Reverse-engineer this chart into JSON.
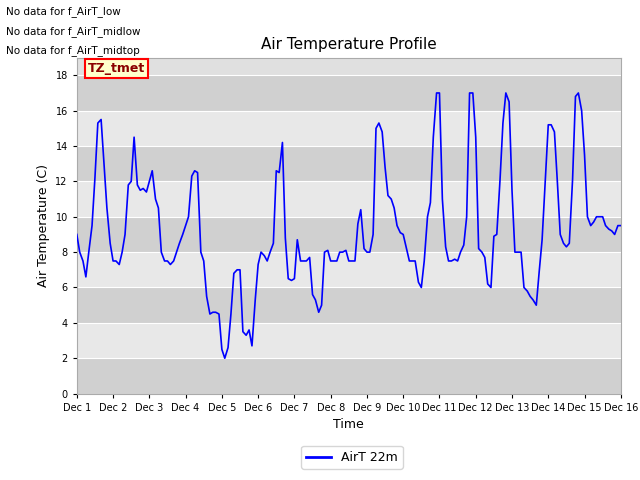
{
  "title": "Air Temperature Profile",
  "xlabel": "Time",
  "ylabel": "Air Temperature (C)",
  "ylim": [
    0,
    19
  ],
  "yticks": [
    0,
    2,
    4,
    6,
    8,
    10,
    12,
    14,
    16,
    18
  ],
  "line_color": "#0000FF",
  "line_width": 1.2,
  "bg_color": "#ffffff",
  "plot_bg_color": "#e0e0e0",
  "band_color_dark": "#d0d0d0",
  "band_color_light": "#e8e8e8",
  "annotation_texts": [
    "No data for f_AirT_low",
    "No data for f_AirT_midlow",
    "No data for f_AirT_midtop"
  ],
  "legend_label": "AirT 22m",
  "legend_line_color": "#0000FF",
  "tz_tmet_text": "TZ_tmet",
  "xtick_labels": [
    "Dec 1",
    "Dec 2",
    "Dec 3",
    "Dec 4",
    "Dec 5",
    "Dec 6",
    "Dec 7",
    "Dec 8",
    "Dec 9",
    "Dec 10",
    "Dec 11",
    "Dec 12",
    "Dec 13",
    "Dec 14",
    "Dec 15",
    "Dec 16"
  ],
  "time_values": [
    0,
    0.08,
    0.17,
    0.25,
    0.33,
    0.42,
    0.5,
    0.58,
    0.67,
    0.75,
    0.83,
    0.92,
    1.0,
    1.08,
    1.17,
    1.25,
    1.33,
    1.42,
    1.5,
    1.58,
    1.67,
    1.75,
    1.83,
    1.92,
    2.0,
    2.08,
    2.17,
    2.25,
    2.33,
    2.42,
    2.5,
    2.58,
    2.67,
    2.75,
    2.83,
    2.92,
    3.0,
    3.08,
    3.17,
    3.25,
    3.33,
    3.42,
    3.5,
    3.58,
    3.67,
    3.75,
    3.83,
    3.92,
    4.0,
    4.08,
    4.17,
    4.25,
    4.33,
    4.42,
    4.5,
    4.58,
    4.67,
    4.75,
    4.83,
    4.92,
    5.0,
    5.08,
    5.17,
    5.25,
    5.33,
    5.42,
    5.5,
    5.58,
    5.67,
    5.75,
    5.83,
    5.92,
    6.0,
    6.08,
    6.17,
    6.25,
    6.33,
    6.42,
    6.5,
    6.58,
    6.67,
    6.75,
    6.83,
    6.92,
    7.0,
    7.08,
    7.17,
    7.25,
    7.33,
    7.42,
    7.5,
    7.58,
    7.67,
    7.75,
    7.83,
    7.92,
    8.0,
    8.08,
    8.17,
    8.25,
    8.33,
    8.42,
    8.5,
    8.58,
    8.67,
    8.75,
    8.83,
    8.92,
    9.0,
    9.08,
    9.17,
    9.25,
    9.33,
    9.42,
    9.5,
    9.58,
    9.67,
    9.75,
    9.83,
    9.92,
    10.0,
    10.08,
    10.17,
    10.25,
    10.33,
    10.42,
    10.5,
    10.58,
    10.67,
    10.75,
    10.83,
    10.92,
    11.0,
    11.08,
    11.17,
    11.25,
    11.33,
    11.42,
    11.5,
    11.58,
    11.67,
    11.75,
    11.83,
    11.92,
    12.0,
    12.08,
    12.17,
    12.25,
    12.33,
    12.42,
    12.5,
    12.58,
    12.67,
    12.75,
    12.83,
    12.92,
    13.0,
    13.08,
    13.17,
    13.25,
    13.33,
    13.42,
    13.5,
    13.58,
    13.67,
    13.75,
    13.83,
    13.92,
    14.0,
    14.08,
    14.17,
    14.25,
    14.33,
    14.42,
    14.5,
    14.58,
    14.67,
    14.75,
    14.83,
    14.92,
    15.0
  ],
  "temp_values": [
    9.0,
    8.0,
    7.5,
    6.6,
    8.0,
    9.5,
    12.2,
    15.3,
    15.5,
    13.0,
    10.5,
    8.5,
    7.5,
    7.5,
    7.3,
    8.0,
    9.0,
    11.8,
    12.0,
    14.5,
    11.8,
    11.5,
    11.6,
    11.4,
    12.0,
    12.6,
    11.0,
    10.5,
    8.0,
    7.5,
    7.5,
    7.3,
    7.5,
    8.0,
    8.5,
    9.0,
    9.5,
    10.0,
    12.3,
    12.6,
    12.5,
    8.0,
    7.5,
    5.5,
    4.5,
    4.6,
    4.6,
    4.5,
    2.5,
    2.0,
    2.6,
    4.5,
    6.8,
    7.0,
    7.0,
    3.5,
    3.3,
    3.6,
    2.7,
    5.3,
    7.3,
    8.0,
    7.8,
    7.5,
    8.0,
    8.5,
    12.6,
    12.5,
    14.2,
    8.8,
    6.5,
    6.4,
    6.5,
    8.7,
    7.5,
    7.5,
    7.5,
    7.7,
    5.6,
    5.3,
    4.6,
    5.0,
    8.0,
    8.1,
    7.5,
    7.5,
    7.5,
    8.0,
    8.0,
    8.1,
    7.5,
    7.5,
    7.5,
    9.6,
    10.4,
    8.2,
    8.0,
    8.0,
    9.0,
    15.0,
    15.3,
    14.8,
    12.8,
    11.2,
    11.0,
    10.5,
    9.5,
    9.1,
    9.0,
    8.3,
    7.5,
    7.5,
    7.5,
    6.3,
    6.0,
    7.5,
    10.0,
    10.8,
    14.5,
    17.0,
    17.0,
    11.0,
    8.3,
    7.5,
    7.5,
    7.6,
    7.5,
    8.0,
    8.4,
    10.0,
    17.0,
    17.0,
    14.5,
    8.2,
    8.0,
    7.7,
    6.2,
    6.0,
    8.9,
    9.0,
    12.1,
    15.3,
    17.0,
    16.5,
    11.5,
    8.0,
    8.0,
    8.0,
    6.0,
    5.8,
    5.5,
    5.3,
    5.0,
    6.9,
    8.7,
    12.2,
    15.2,
    15.2,
    14.8,
    12.0,
    9.0,
    8.5,
    8.3,
    8.5,
    12.1,
    16.8,
    17.0,
    16.0,
    13.5,
    10.0,
    9.5,
    9.7,
    10.0,
    10.0,
    10.0,
    9.5,
    9.3,
    9.2,
    9.0,
    9.5,
    9.5
  ]
}
